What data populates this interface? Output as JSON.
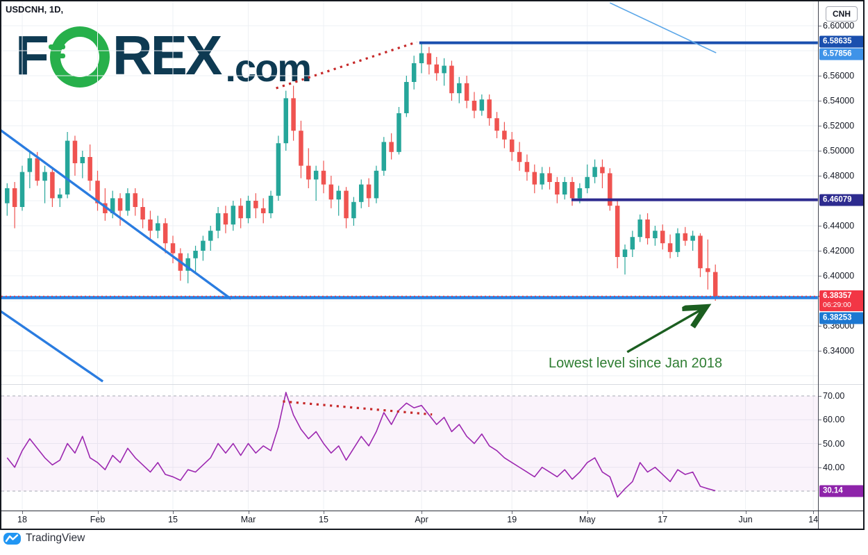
{
  "header": {
    "symbol_title": "USDCNH, 1D,"
  },
  "logo": {
    "part1": "F",
    "part2": "REX",
    "suffix": ".com",
    "navy": "#0e3a52",
    "green": "#27b04b"
  },
  "branding": {
    "label": "TradingView",
    "icon_color": "#2196f3"
  },
  "price_scale": {
    "currency": "CNH",
    "ticks": [
      {
        "label": "6.60000",
        "value": 6.6
      },
      {
        "label": "6.56000",
        "value": 6.56
      },
      {
        "label": "6.54000",
        "value": 6.54
      },
      {
        "label": "6.52000",
        "value": 6.52
      },
      {
        "label": "6.50000",
        "value": 6.5
      },
      {
        "label": "6.48000",
        "value": 6.48
      },
      {
        "label": "6.44000",
        "value": 6.44
      },
      {
        "label": "6.42000",
        "value": 6.42
      },
      {
        "label": "6.40000",
        "value": 6.4
      },
      {
        "label": "6.36000",
        "value": 6.36
      },
      {
        "label": "6.34000",
        "value": 6.34
      }
    ]
  },
  "rsi_scale": {
    "ticks": [
      {
        "label": "70.00",
        "value": 70
      },
      {
        "label": "60.00",
        "value": 60
      },
      {
        "label": "50.00",
        "value": 50
      },
      {
        "label": "40.00",
        "value": 40
      }
    ]
  },
  "time_scale": {
    "ticks": [
      {
        "label": "18",
        "day": 2
      },
      {
        "label": "Feb",
        "day": 12
      },
      {
        "label": "15",
        "day": 22
      },
      {
        "label": "Mar",
        "day": 32
      },
      {
        "label": "15",
        "day": 42
      },
      {
        "label": "Apr",
        "day": 55
      },
      {
        "label": "19",
        "day": 67
      },
      {
        "label": "May",
        "day": 77
      },
      {
        "label": "17",
        "day": 87
      },
      {
        "label": "Jun",
        "day": 98
      },
      {
        "label": "14",
        "day": 107
      }
    ]
  },
  "badges": {
    "resistance": {
      "label": "6.58635",
      "price": 6.58635,
      "color": "#1a4fae"
    },
    "prev_close": {
      "label": "6.57856",
      "price": 6.57856,
      "color": "#3f93e8"
    },
    "support_mid": {
      "label": "6.46079",
      "price": 6.46079,
      "color": "#2d2b8f"
    },
    "last_price": {
      "label": "6.38357",
      "countdown": "06:29:00",
      "price": 6.38357,
      "color": "#f23645"
    },
    "support_low": {
      "label": "6.38253",
      "price": 6.38253,
      "color": "#1d78d2"
    },
    "rsi_value": {
      "label": "30.14",
      "value": 30.14,
      "color": "#8e24aa"
    }
  },
  "levels": [
    {
      "name": "resistance-line",
      "price": 6.58635,
      "start_day": 54.7,
      "end_day": 107.6,
      "color": "#1a4fae",
      "width": 4
    },
    {
      "name": "mid-support-line",
      "price": 6.46079,
      "start_day": 74.9,
      "end_day": 107.6,
      "color": "#2d2b8f",
      "width": 4
    },
    {
      "name": "low-support-line",
      "price": 6.38253,
      "start_day": -1,
      "end_day": 107.6,
      "color": "#2781e3",
      "width": 4.5
    }
  ],
  "price_line": {
    "price": 6.38357,
    "color": "#f23645"
  },
  "drawings": {
    "trendlines": [
      {
        "name": "main-downtrend-line",
        "from": {
          "day": -1.0,
          "price": 6.517
        },
        "to": {
          "day": 29.7,
          "price": 6.3815
        },
        "color": "#2a7ce0",
        "width": 3.4
      },
      {
        "name": "channel-lower-line",
        "from": {
          "day": -1.2,
          "price": 6.373
        },
        "to": {
          "day": 12.7,
          "price": 6.3155
        },
        "color": "#2a7ce0",
        "width": 3.4
      },
      {
        "name": "upper-falling-line",
        "from": {
          "day": 80.0,
          "price": 6.6183
        },
        "to": {
          "day": 94.1,
          "price": 6.5783
        },
        "color": "#5aa6e8",
        "width": 1.6
      }
    ],
    "dotted_price_trendline": {
      "from": {
        "day": 35.7,
        "price": 6.55
      },
      "to": {
        "day": 54.4,
        "price": 6.587
      },
      "color": "#c62828",
      "width": 3.2
    },
    "dotted_rsi_trendline": {
      "from": {
        "day": 36.6,
        "rsi": 67.7
      },
      "to": {
        "day": 56.4,
        "rsi": 62.2
      },
      "color": "#c62828",
      "width": 3.2
    },
    "arrow": {
      "from": {
        "day": 82.3,
        "price": 6.339
      },
      "to": {
        "day": 92.6,
        "price": 6.3745
      },
      "color": "#1b5e20",
      "width": 3.4
    },
    "note": {
      "text": "Lowest level since Jan 2018",
      "color": "#2e7d32"
    }
  },
  "chart_data": [
    {
      "type": "candlestick",
      "panel": "price",
      "symbol": "USDCNH",
      "interval": "1D",
      "up_color": "#26a69a",
      "down_color": "#ef5350",
      "y_axis": {
        "range": [
          6.315,
          6.605
        ],
        "tick_step": 0.02
      },
      "grid": true,
      "candles": [
        [
          6.458,
          6.474,
          6.448,
          6.47
        ],
        [
          6.47,
          6.475,
          6.438,
          6.455
        ],
        [
          6.455,
          6.488,
          6.452,
          6.483
        ],
        [
          6.483,
          6.5,
          6.47,
          6.494
        ],
        [
          6.494,
          6.499,
          6.472,
          6.476
        ],
        [
          6.476,
          6.488,
          6.458,
          6.483
        ],
        [
          6.483,
          6.486,
          6.455,
          6.462
        ],
        [
          6.462,
          6.47,
          6.455,
          6.465
        ],
        [
          6.465,
          6.515,
          6.462,
          6.508
        ],
        [
          6.508,
          6.512,
          6.48,
          6.49
        ],
        [
          6.49,
          6.5,
          6.478,
          6.495
        ],
        [
          6.495,
          6.505,
          6.468,
          6.476
        ],
        [
          6.476,
          6.484,
          6.452,
          6.458
        ],
        [
          6.458,
          6.47,
          6.444,
          6.45
        ],
        [
          6.45,
          6.468,
          6.446,
          6.462
        ],
        [
          6.462,
          6.466,
          6.44,
          6.452
        ],
        [
          6.452,
          6.47,
          6.448,
          6.466
        ],
        [
          6.466,
          6.47,
          6.448,
          6.455
        ],
        [
          6.455,
          6.462,
          6.438,
          6.445
        ],
        [
          6.445,
          6.452,
          6.428,
          6.436
        ],
        [
          6.436,
          6.448,
          6.43,
          6.442
        ],
        [
          6.442,
          6.446,
          6.418,
          6.426
        ],
        [
          6.426,
          6.432,
          6.41,
          6.418
        ],
        [
          6.418,
          6.422,
          6.396,
          6.404
        ],
        [
          6.404,
          6.418,
          6.394,
          6.414
        ],
        [
          6.414,
          6.424,
          6.402,
          6.42
        ],
        [
          6.42,
          6.432,
          6.412,
          6.428
        ],
        [
          6.428,
          6.44,
          6.42,
          6.436
        ],
        [
          6.436,
          6.455,
          6.43,
          6.45
        ],
        [
          6.45,
          6.456,
          6.434,
          6.441
        ],
        [
          6.441,
          6.46,
          6.436,
          6.456
        ],
        [
          6.456,
          6.462,
          6.438,
          6.446
        ],
        [
          6.446,
          6.464,
          6.442,
          6.46
        ],
        [
          6.46,
          6.466,
          6.446,
          6.454
        ],
        [
          6.454,
          6.462,
          6.442,
          6.45
        ],
        [
          6.45,
          6.468,
          6.446,
          6.464
        ],
        [
          6.464,
          6.512,
          6.46,
          6.506
        ],
        [
          6.506,
          6.548,
          6.5,
          6.542
        ],
        [
          6.542,
          6.552,
          6.508,
          6.516
        ],
        [
          6.516,
          6.524,
          6.478,
          6.488
        ],
        [
          6.488,
          6.502,
          6.47,
          6.477
        ],
        [
          6.477,
          6.488,
          6.46,
          6.484
        ],
        [
          6.484,
          6.492,
          6.466,
          6.473
        ],
        [
          6.473,
          6.48,
          6.454,
          6.461
        ],
        [
          6.461,
          6.472,
          6.448,
          6.468
        ],
        [
          6.468,
          6.471,
          6.438,
          6.446
        ],
        [
          6.446,
          6.463,
          6.44,
          6.459
        ],
        [
          6.459,
          6.477,
          6.454,
          6.473
        ],
        [
          6.473,
          6.478,
          6.455,
          6.462
        ],
        [
          6.462,
          6.488,
          6.458,
          6.484
        ],
        [
          6.484,
          6.511,
          6.48,
          6.507
        ],
        [
          6.507,
          6.514,
          6.493,
          6.499
        ],
        [
          6.499,
          6.535,
          6.497,
          6.53
        ],
        [
          6.53,
          6.56,
          6.527,
          6.555
        ],
        [
          6.555,
          6.576,
          6.549,
          6.57
        ],
        [
          6.57,
          6.586,
          6.562,
          6.578
        ],
        [
          6.578,
          6.583,
          6.561,
          6.569
        ],
        [
          6.569,
          6.575,
          6.556,
          6.562
        ],
        [
          6.562,
          6.574,
          6.552,
          6.568
        ],
        [
          6.568,
          6.572,
          6.54,
          6.546
        ],
        [
          6.546,
          6.559,
          6.538,
          6.554
        ],
        [
          6.554,
          6.56,
          6.534,
          6.54
        ],
        [
          6.54,
          6.547,
          6.526,
          6.532
        ],
        [
          6.532,
          6.545,
          6.528,
          6.541
        ],
        [
          6.541,
          6.545,
          6.52,
          6.526
        ],
        [
          6.526,
          6.531,
          6.51,
          6.516
        ],
        [
          6.516,
          6.523,
          6.502,
          6.509
        ],
        [
          6.509,
          6.515,
          6.492,
          6.499
        ],
        [
          6.499,
          6.507,
          6.484,
          6.491
        ],
        [
          6.491,
          6.497,
          6.476,
          6.483
        ],
        [
          6.483,
          6.489,
          6.466,
          6.473
        ],
        [
          6.473,
          6.487,
          6.469,
          6.482
        ],
        [
          6.482,
          6.487,
          6.469,
          6.475
        ],
        [
          6.475,
          6.479,
          6.458,
          6.465
        ],
        [
          6.465,
          6.479,
          6.461,
          6.475
        ],
        [
          6.475,
          6.479,
          6.456,
          6.462
        ],
        [
          6.462,
          6.474,
          6.458,
          6.47
        ],
        [
          6.47,
          6.489,
          6.466,
          6.479
        ],
        [
          6.479,
          6.493,
          6.474,
          6.487
        ],
        [
          6.487,
          6.493,
          6.47,
          6.482
        ],
        [
          6.482,
          6.486,
          6.452,
          6.456
        ],
        [
          6.456,
          6.46,
          6.406,
          6.415
        ],
        [
          6.415,
          6.425,
          6.401,
          6.421
        ],
        [
          6.421,
          6.436,
          6.415,
          6.431
        ],
        [
          6.431,
          6.449,
          6.427,
          6.445
        ],
        [
          6.445,
          6.45,
          6.425,
          6.43
        ],
        [
          6.43,
          6.44,
          6.424,
          6.436
        ],
        [
          6.436,
          6.441,
          6.421,
          6.426
        ],
        [
          6.426,
          6.433,
          6.414,
          6.419
        ],
        [
          6.419,
          6.438,
          6.415,
          6.434
        ],
        [
          6.434,
          6.439,
          6.424,
          6.428
        ],
        [
          6.428,
          6.436,
          6.42,
          6.432
        ],
        [
          6.432,
          6.434,
          6.399,
          6.406
        ],
        [
          6.406,
          6.429,
          6.389,
          6.403
        ],
        [
          6.403,
          6.409,
          6.38,
          6.3836
        ]
      ]
    },
    {
      "type": "line",
      "panel": "rsi",
      "name": "RSI",
      "line_color": "#9c27b0",
      "band": {
        "upper": 70,
        "lower": 30,
        "fill": "rgba(156,39,176,0.055)"
      },
      "y_axis": {
        "range": [
          22,
          78
        ]
      },
      "last_value": 30.14,
      "values": [
        44,
        40,
        47,
        52,
        48,
        44,
        41,
        43,
        50,
        46,
        53,
        44,
        42,
        39,
        45,
        42,
        48,
        44,
        41,
        38,
        42,
        37,
        36,
        34.5,
        39,
        38,
        41,
        44,
        50,
        46,
        50,
        45,
        50,
        46,
        49,
        47,
        57,
        71.5,
        62,
        56,
        52,
        55,
        50,
        46,
        49,
        43,
        48,
        53,
        49,
        55,
        63,
        58,
        64,
        67,
        65,
        66,
        62,
        58,
        61,
        55,
        58,
        53,
        50,
        54,
        49,
        47,
        44,
        42,
        40,
        38,
        36,
        40,
        38,
        36,
        39,
        35,
        38,
        42,
        44,
        38,
        36,
        27.5,
        31,
        34,
        42,
        38,
        40,
        37,
        34,
        39,
        37,
        38,
        32,
        31,
        30.14
      ]
    }
  ]
}
